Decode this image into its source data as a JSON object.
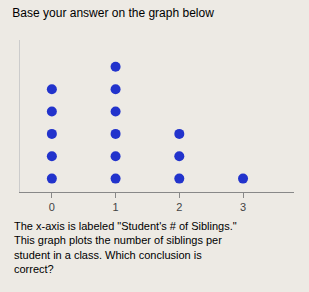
{
  "chart_data": {
    "type": "dot",
    "title": "Base your answer on the graph below",
    "x": [
      0,
      1,
      2,
      3
    ],
    "values": [
      5,
      6,
      3,
      1
    ],
    "color": "#2233cc",
    "xlim": [
      -0.5,
      3.8
    ],
    "xticks": [
      0,
      1,
      2,
      3
    ],
    "ylim": [
      0.4,
      7.2
    ],
    "tick_labels": "x",
    "grid": false,
    "annotations": [
      "The x-axis is labeled \"Student's # of Siblings.\"",
      "This graph plots the number of siblings per",
      "student in a class. Which conclusion is",
      "correct?"
    ]
  }
}
